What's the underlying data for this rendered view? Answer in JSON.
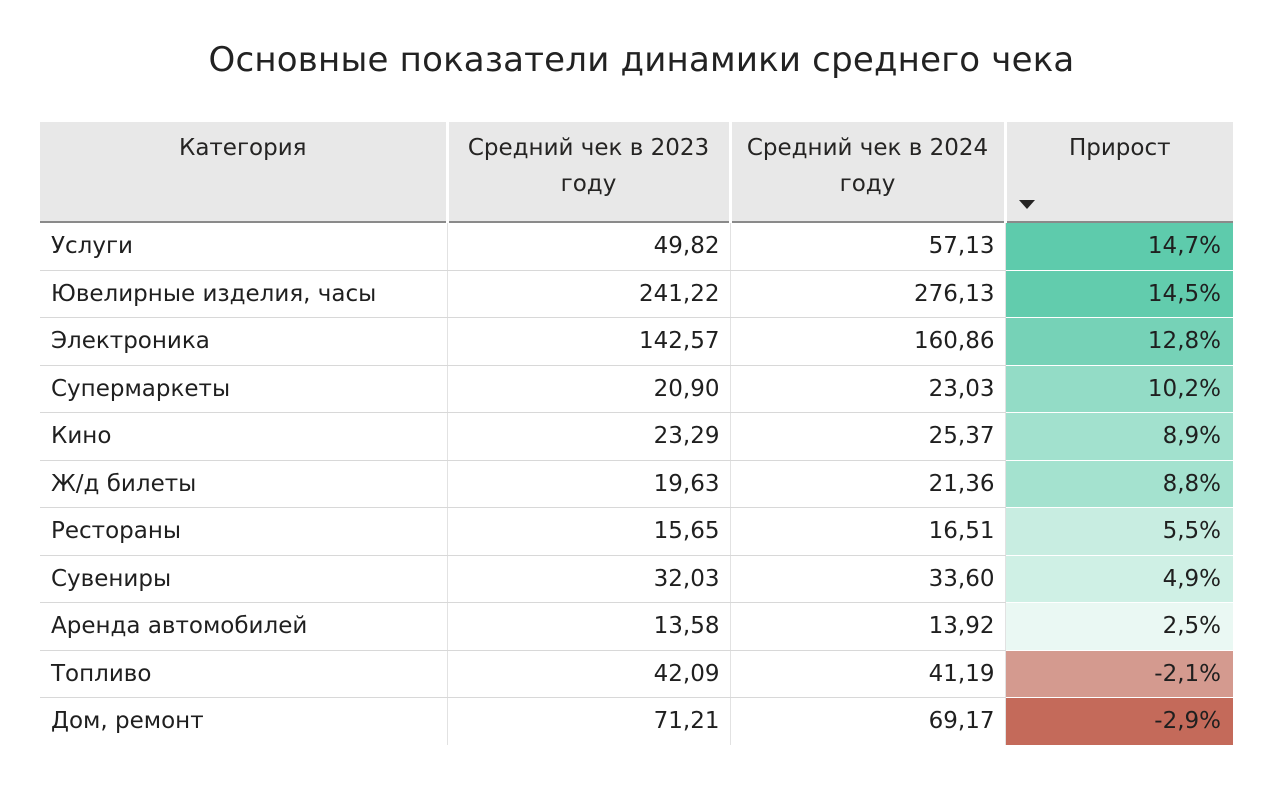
{
  "title": "Основные показатели динамики среднего чека",
  "headers": {
    "category": "Категория",
    "avg_2023": "Средний чек в 2023 году",
    "avg_2024": "Средний чек в 2024 году",
    "growth": "Прирост"
  },
  "sort": {
    "column": "growth",
    "direction": "descending",
    "icon": "sort-down-triangle-icon"
  },
  "colors": {
    "header_bg": "#e8e8e8",
    "positive_max": "#5ecbac",
    "positive_min": "#eef9f5",
    "negative_min": "#d9a095",
    "negative_max": "#c46a5a"
  },
  "rows": [
    {
      "category": "Услуги",
      "avg_2023": "49,82",
      "avg_2024": "57,13",
      "growth": "14,7%",
      "bg": "#5ecbac"
    },
    {
      "category": "Ювелирные изделия, часы",
      "avg_2023": "241,22",
      "avg_2024": "276,13",
      "growth": "14,5%",
      "bg": "#62ccad"
    },
    {
      "category": "Электроника",
      "avg_2023": "142,57",
      "avg_2024": "160,86",
      "growth": "12,8%",
      "bg": "#76d2b7"
    },
    {
      "category": "Супермаркеты",
      "avg_2023": "20,90",
      "avg_2024": "23,03",
      "growth": "10,2%",
      "bg": "#93dcc6"
    },
    {
      "category": "Кино",
      "avg_2023": "23,29",
      "avg_2024": "25,37",
      "growth": "8,9%",
      "bg": "#a2e1ce"
    },
    {
      "category": "Ж/д билеты",
      "avg_2023": "19,63",
      "avg_2024": "21,36",
      "growth": "8,8%",
      "bg": "#a4e2cf"
    },
    {
      "category": "Рестораны",
      "avg_2023": "15,65",
      "avg_2024": "16,51",
      "growth": "5,5%",
      "bg": "#c8ede1"
    },
    {
      "category": "Сувениры",
      "avg_2023": "32,03",
      "avg_2024": "33,60",
      "growth": "4,9%",
      "bg": "#cff0e5"
    },
    {
      "category": "Аренда автомобилей",
      "avg_2023": "13,58",
      "avg_2024": "13,92",
      "growth": "2,5%",
      "bg": "#eaf8f3"
    },
    {
      "category": "Топливо",
      "avg_2023": "42,09",
      "avg_2024": "41,19",
      "growth": "-2,1%",
      "bg": "#d49a8f"
    },
    {
      "category": "Дом, ремонт",
      "avg_2023": "71,21",
      "avg_2024": "69,17",
      "growth": "-2,9%",
      "bg": "#c46a5a"
    }
  ]
}
